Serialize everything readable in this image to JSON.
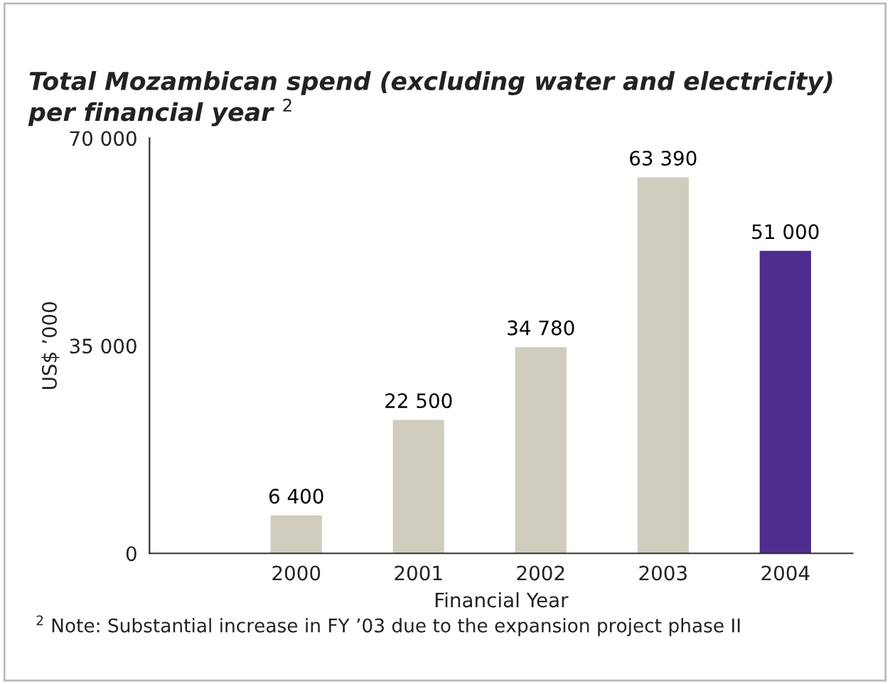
{
  "chart_data": {
    "type": "bar",
    "title": "Total Mozambican spend (excluding water and electricity)\nper financial year $^{2}$",
    "xlabel": "Financial Year",
    "ylabel": "US$ ’000",
    "categories": [
      "2000",
      "2001",
      "2002",
      "2003",
      "2004"
    ],
    "values": [
      6400,
      22500,
      34780,
      63390,
      51000
    ],
    "colors": [
      "#d0cdbf",
      "#d0cdbf",
      "#d0cdbf",
      "#d0cdbf",
      "#4f2d8f"
    ],
    "value_labels": [
      "6 400",
      "22 500",
      "34 780",
      "63 390",
      "51 000"
    ],
    "ylim": [
      0,
      70000
    ],
    "yticks": [
      0,
      {
        "value": 35000,
        "label": "35 000"
      },
      {
        "value": 70000,
        "label": "70 000"
      }
    ],
    "grid": false,
    "annotations": [
      "$^{2}$ Note: Substantial increase in FY ’03 due to the expansion project phase II"
    ]
  }
}
